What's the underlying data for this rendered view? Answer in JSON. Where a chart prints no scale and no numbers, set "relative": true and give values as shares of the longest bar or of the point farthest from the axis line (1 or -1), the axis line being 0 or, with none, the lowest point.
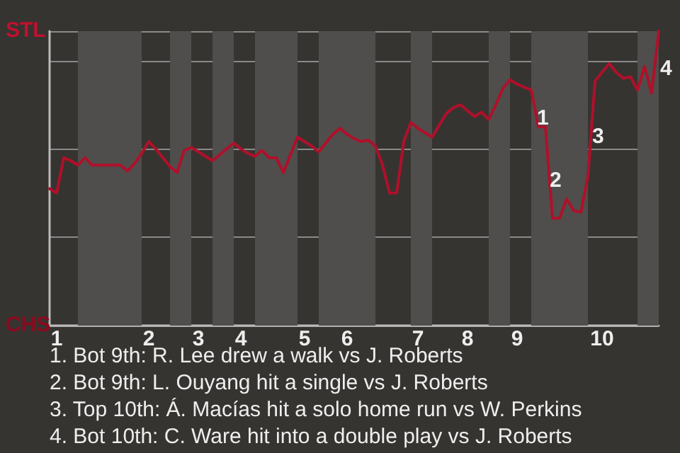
{
  "chart_data": {
    "type": "line",
    "categories": [
      null,
      "1",
      null,
      null,
      null,
      null,
      null,
      null,
      null,
      null,
      null,
      null,
      null,
      null,
      "2",
      null,
      null,
      null,
      null,
      null,
      null,
      "3",
      null,
      null,
      null,
      null,
      null,
      "4",
      null,
      null,
      null,
      null,
      null,
      null,
      null,
      null,
      "5",
      null,
      null,
      null,
      null,
      null,
      "6",
      null,
      null,
      null,
      null,
      null,
      null,
      null,
      null,
      null,
      "7",
      null,
      null,
      null,
      null,
      null,
      null,
      "8",
      null,
      null,
      null,
      null,
      null,
      null,
      "9",
      null,
      null,
      null,
      null,
      null,
      null,
      null,
      null,
      null,
      null,
      null,
      "10",
      null,
      null,
      null,
      null,
      null,
      null,
      null,
      null
    ],
    "relative": true,
    "series": [
      {
        "color": "#b0102a",
        "values": [
          0.465,
          0.45,
          0.57,
          0.56,
          0.545,
          0.57,
          0.545,
          0.545,
          0.545,
          0.545,
          0.545,
          0.525,
          0.55,
          0.585,
          0.625,
          0.6,
          0.57,
          0.54,
          0.52,
          0.595,
          0.605,
          0.59,
          0.575,
          0.56,
          0.58,
          0.6,
          0.62,
          0.6,
          0.585,
          0.575,
          0.595,
          0.57,
          0.57,
          0.52,
          0.58,
          0.64,
          0.625,
          0.61,
          0.59,
          0.62,
          0.65,
          0.67,
          0.65,
          0.635,
          0.625,
          0.63,
          0.61,
          0.545,
          0.45,
          0.45,
          0.625,
          0.69,
          0.67,
          0.655,
          0.64,
          0.68,
          0.72,
          0.74,
          0.75,
          0.73,
          0.71,
          0.725,
          0.7,
          0.75,
          0.805,
          0.835,
          0.82,
          0.81,
          0.8,
          0.675,
          0.675,
          0.365,
          0.365,
          0.43,
          0.39,
          0.385,
          0.505,
          0.83,
          0.86,
          0.89,
          0.86,
          0.84,
          0.845,
          0.8,
          0.88,
          0.79,
          1
        ]
      }
    ],
    "grid": "y",
    "marker": "none",
    "annotations": [
      "STL",
      "CHS",
      "1",
      "2",
      "3",
      "4",
      "1. Bot 9th: R. Lee drew a walk vs J. Roberts",
      "2. Bot 9th: L. Ouyang hit a single vs J. Roberts",
      "3. Top 10th: Á. Macías hit a solo home run vs W. Perkins",
      "4. Bot 10th: C. Ware hit into a double play vs J. Roberts"
    ]
  }
}
